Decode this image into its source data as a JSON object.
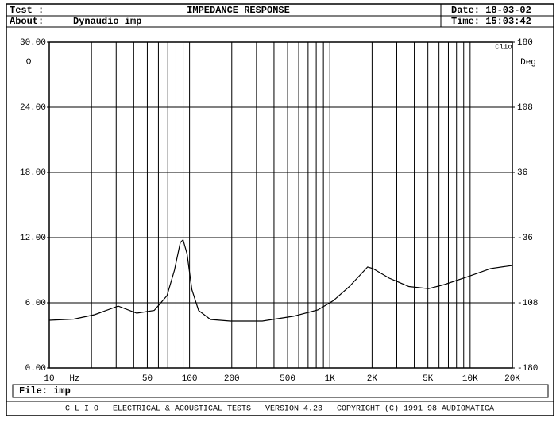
{
  "chart_data": {
    "type": "line",
    "title": "IMPEDANCE RESPONSE",
    "header": {
      "test": "Test :",
      "date": "Date: 18-03-02",
      "about_label": "About:",
      "about": "Dynaudio imp",
      "time": "Time: 15:03:42"
    },
    "brand": "Clio",
    "y_unit": "Ω",
    "y2_unit": "Deg",
    "x_unit": "Hz",
    "file": "File: imp",
    "footer": "C L I O  -  ELECTRICAL & ACOUSTICAL TESTS  -  VERSION 4.23  -  COPYRIGHT (C) 1991-98 AUDIOMATICA",
    "x_log": true,
    "xlim": [
      10,
      20000
    ],
    "xticks": [
      10,
      50,
      100,
      200,
      500,
      {
        "value": 1000,
        "label": "1K"
      },
      {
        "value": 2000,
        "label": "2K"
      },
      {
        "value": 5000,
        "label": "5K"
      },
      {
        "value": 10000,
        "label": "10K"
      },
      {
        "value": 20000,
        "label": "20K"
      }
    ],
    "x_minor_ticks": [
      20,
      30,
      40,
      60,
      70,
      80,
      90,
      300,
      400,
      600,
      700,
      800,
      900,
      3000,
      4000,
      6000,
      7000,
      8000,
      9000
    ],
    "ylim": [
      0,
      30
    ],
    "yticks": [
      {
        "value": 0,
        "label": "0.00"
      },
      {
        "value": 6,
        "label": "6.00"
      },
      {
        "value": 12,
        "label": "12.00"
      },
      {
        "value": 18,
        "label": "18.00"
      },
      {
        "value": 24,
        "label": "24.00"
      },
      {
        "value": 30,
        "label": "30.00"
      }
    ],
    "y2lim": [
      -180,
      180
    ],
    "y2ticks": [
      -180,
      -108,
      -36,
      36,
      108,
      180
    ],
    "grid": true,
    "color": "#000000",
    "x": [
      10,
      15,
      21,
      31,
      42,
      56,
      69,
      78,
      86,
      90,
      96,
      104,
      116,
      141,
      195,
      330,
      550,
      820,
      1060,
      1380,
      1860,
      2030,
      2650,
      3660,
      5060,
      6570,
      9600,
      14000,
      20000
    ],
    "values": [
      4.39,
      4.5,
      4.9,
      5.7,
      5.05,
      5.3,
      6.65,
      9.0,
      11.56,
      11.8,
      10.5,
      7.2,
      5.3,
      4.46,
      4.32,
      4.32,
      4.76,
      5.34,
      6.2,
      7.5,
      9.3,
      9.15,
      8.27,
      7.5,
      7.3,
      7.68,
      8.4,
      9.15,
      9.44
    ]
  }
}
